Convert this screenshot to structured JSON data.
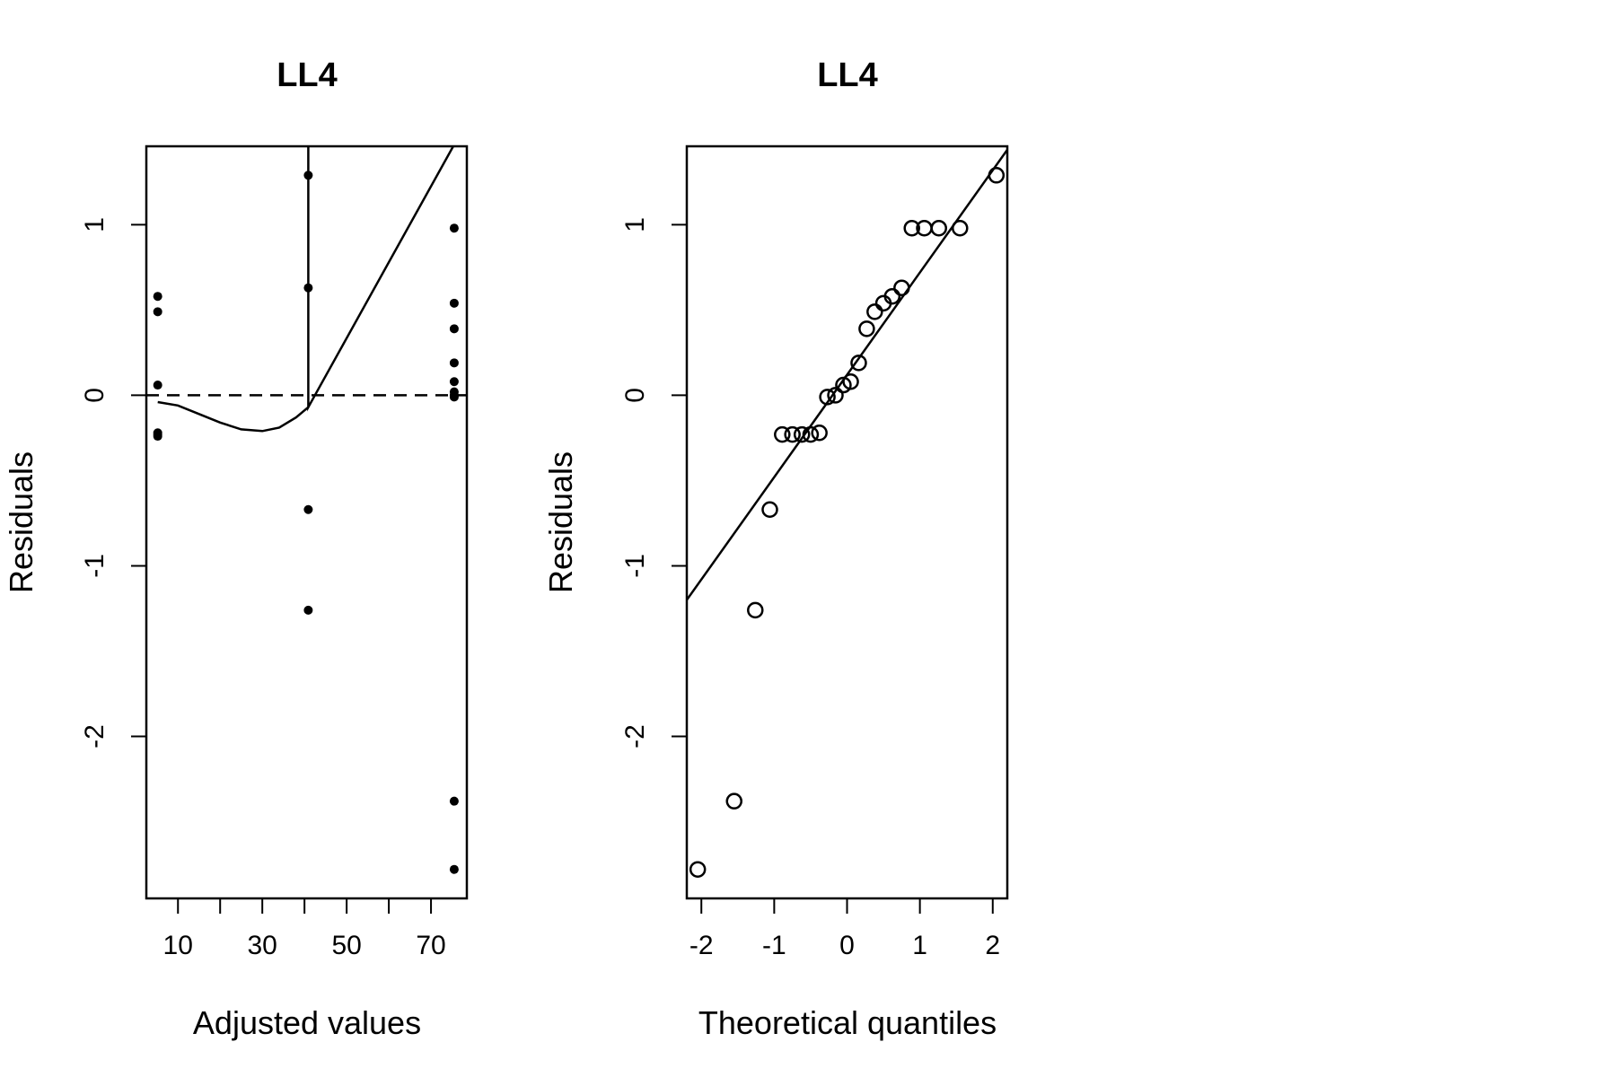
{
  "colors": {
    "foreground": "#000000",
    "background": "#ffffff"
  },
  "chart_data": [
    {
      "type": "scatter",
      "title": "LL4",
      "xlabel": "Adjusted values",
      "ylabel": "Residuals",
      "xlim": [
        2.5,
        78.5
      ],
      "ylim": [
        -2.95,
        1.46
      ],
      "xticks": [
        10,
        20,
        30,
        40,
        50,
        60,
        70
      ],
      "xtick_labels": [
        "10",
        "30",
        "50",
        "70"
      ],
      "xtick_label_values": [
        10,
        30,
        50,
        70
      ],
      "yticks": [
        -2,
        -1,
        0,
        1
      ],
      "ytick_labels": [
        "-2",
        "-1",
        "0",
        "1"
      ],
      "reference_line": {
        "y": 0,
        "style": "dashed"
      },
      "points": [
        {
          "x": 5.2,
          "y": 0.58
        },
        {
          "x": 5.2,
          "y": 0.49
        },
        {
          "x": 5.2,
          "y": 0.06
        },
        {
          "x": 5.2,
          "y": -0.22
        },
        {
          "x": 5.2,
          "y": -0.23
        },
        {
          "x": 5.2,
          "y": -0.24
        },
        {
          "x": 40.9,
          "y": 1.29
        },
        {
          "x": 40.9,
          "y": 0.63
        },
        {
          "x": 40.9,
          "y": -0.67
        },
        {
          "x": 40.9,
          "y": -1.26
        },
        {
          "x": 75.5,
          "y": 0.98
        },
        {
          "x": 75.5,
          "y": 0.54
        },
        {
          "x": 75.5,
          "y": 0.39
        },
        {
          "x": 75.5,
          "y": 0.19
        },
        {
          "x": 75.5,
          "y": 0.08
        },
        {
          "x": 75.5,
          "y": 0.02
        },
        {
          "x": 75.5,
          "y": 0.0
        },
        {
          "x": 75.5,
          "y": -0.01
        },
        {
          "x": 75.5,
          "y": -2.38
        },
        {
          "x": 75.5,
          "y": -2.78
        }
      ],
      "smoother": [
        [
          5.2,
          -0.04
        ],
        [
          10,
          -0.06
        ],
        [
          15,
          -0.11
        ],
        [
          20,
          -0.16
        ],
        [
          25,
          -0.2
        ],
        [
          30,
          -0.21
        ],
        [
          34,
          -0.19
        ],
        [
          38,
          -0.13
        ],
        [
          40.9,
          -0.07
        ],
        [
          40.9,
          1.47
        ],
        [
          40.9,
          -0.07
        ],
        [
          75.5,
          1.47
        ]
      ]
    },
    {
      "type": "scatter",
      "title": "LL4",
      "xlabel": "Theoretical quantiles",
      "ylabel": "Residuals",
      "xlim": [
        -2.2,
        2.2
      ],
      "ylim": [
        -2.95,
        1.46
      ],
      "xticks": [
        -2,
        -1,
        0,
        1,
        2
      ],
      "xtick_labels": [
        "-2",
        "-1",
        "0",
        "1",
        "2"
      ],
      "xtick_label_values": [
        -2,
        -1,
        0,
        1,
        2
      ],
      "yticks": [
        -2,
        -1,
        0,
        1
      ],
      "ytick_labels": [
        "-2",
        "-1",
        "0",
        "1"
      ],
      "qq_line": {
        "intercept": 0.12,
        "slope": 0.6
      },
      "points": [
        {
          "x": -2.05,
          "y": -2.78
        },
        {
          "x": -1.55,
          "y": -2.38
        },
        {
          "x": -1.26,
          "y": -1.26
        },
        {
          "x": -1.06,
          "y": -0.67
        },
        {
          "x": -0.89,
          "y": -0.23
        },
        {
          "x": -0.75,
          "y": -0.23
        },
        {
          "x": -0.62,
          "y": -0.23
        },
        {
          "x": -0.5,
          "y": -0.23
        },
        {
          "x": -0.38,
          "y": -0.22
        },
        {
          "x": -0.27,
          "y": -0.01
        },
        {
          "x": -0.16,
          "y": 0.0
        },
        {
          "x": -0.05,
          "y": 0.06
        },
        {
          "x": 0.05,
          "y": 0.08
        },
        {
          "x": 0.16,
          "y": 0.19
        },
        {
          "x": 0.27,
          "y": 0.39
        },
        {
          "x": 0.38,
          "y": 0.49
        },
        {
          "x": 0.5,
          "y": 0.54
        },
        {
          "x": 0.62,
          "y": 0.58
        },
        {
          "x": 0.75,
          "y": 0.63
        },
        {
          "x": 0.89,
          "y": 0.98
        },
        {
          "x": 1.06,
          "y": 0.98
        },
        {
          "x": 1.26,
          "y": 0.98
        },
        {
          "x": 1.55,
          "y": 0.98
        },
        {
          "x": 2.05,
          "y": 1.29
        }
      ]
    }
  ]
}
